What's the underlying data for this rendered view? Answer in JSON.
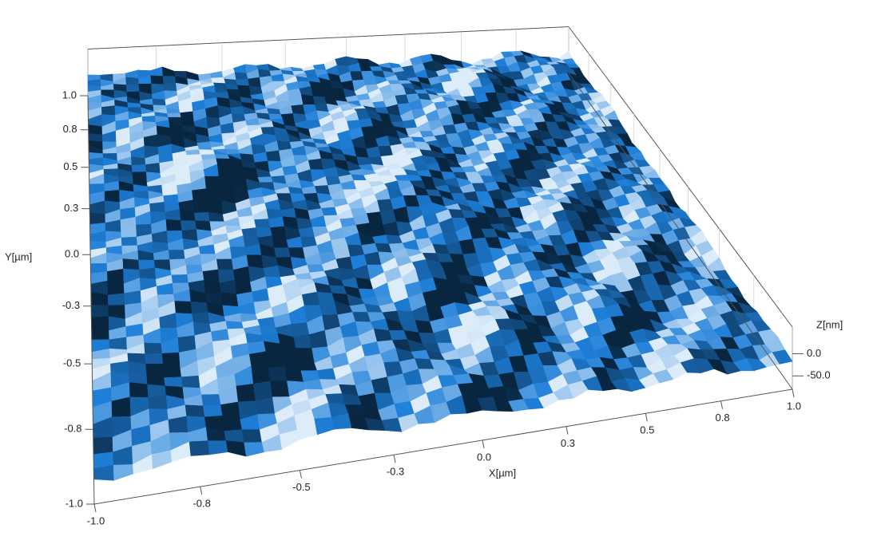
{
  "chart_data": {
    "type": "surface3d",
    "xlabel": "X[µm]",
    "ylabel": "Y[µm]",
    "zlabel": "Z[nm]",
    "xlim": [
      -1,
      1
    ],
    "ylim": [
      -1,
      1
    ],
    "zlim": [
      -80,
      60
    ],
    "xticks": [
      {
        "value": -1,
        "label": "-1.0"
      },
      {
        "value": -0.75,
        "label": "-0.8"
      },
      {
        "value": -0.5,
        "label": "-0.5"
      },
      {
        "value": -0.25,
        "label": "-0.3"
      },
      {
        "value": 0,
        "label": "0.0"
      },
      {
        "value": 0.25,
        "label": "0.3"
      },
      {
        "value": 0.5,
        "label": "0.5"
      },
      {
        "value": 0.75,
        "label": "0.8"
      },
      {
        "value": 1,
        "label": "1.0"
      }
    ],
    "yticks": [
      {
        "value": -1,
        "label": "-1.0"
      },
      {
        "value": -0.75,
        "label": "-0.8"
      },
      {
        "value": -0.5,
        "label": "-0.5"
      },
      {
        "value": -0.25,
        "label": "-0.3"
      },
      {
        "value": 0,
        "label": "0.0"
      },
      {
        "value": 0.25,
        "label": "0.3"
      },
      {
        "value": 0.5,
        "label": "0.5"
      },
      {
        "value": 0.75,
        "label": "0.8"
      },
      {
        "value": 1,
        "label": "1.0"
      }
    ],
    "zticks": [
      {
        "value": 0,
        "label": "0.0"
      },
      {
        "value": -50,
        "label": "-50.0"
      }
    ],
    "color": "#1e7fd8"
  }
}
